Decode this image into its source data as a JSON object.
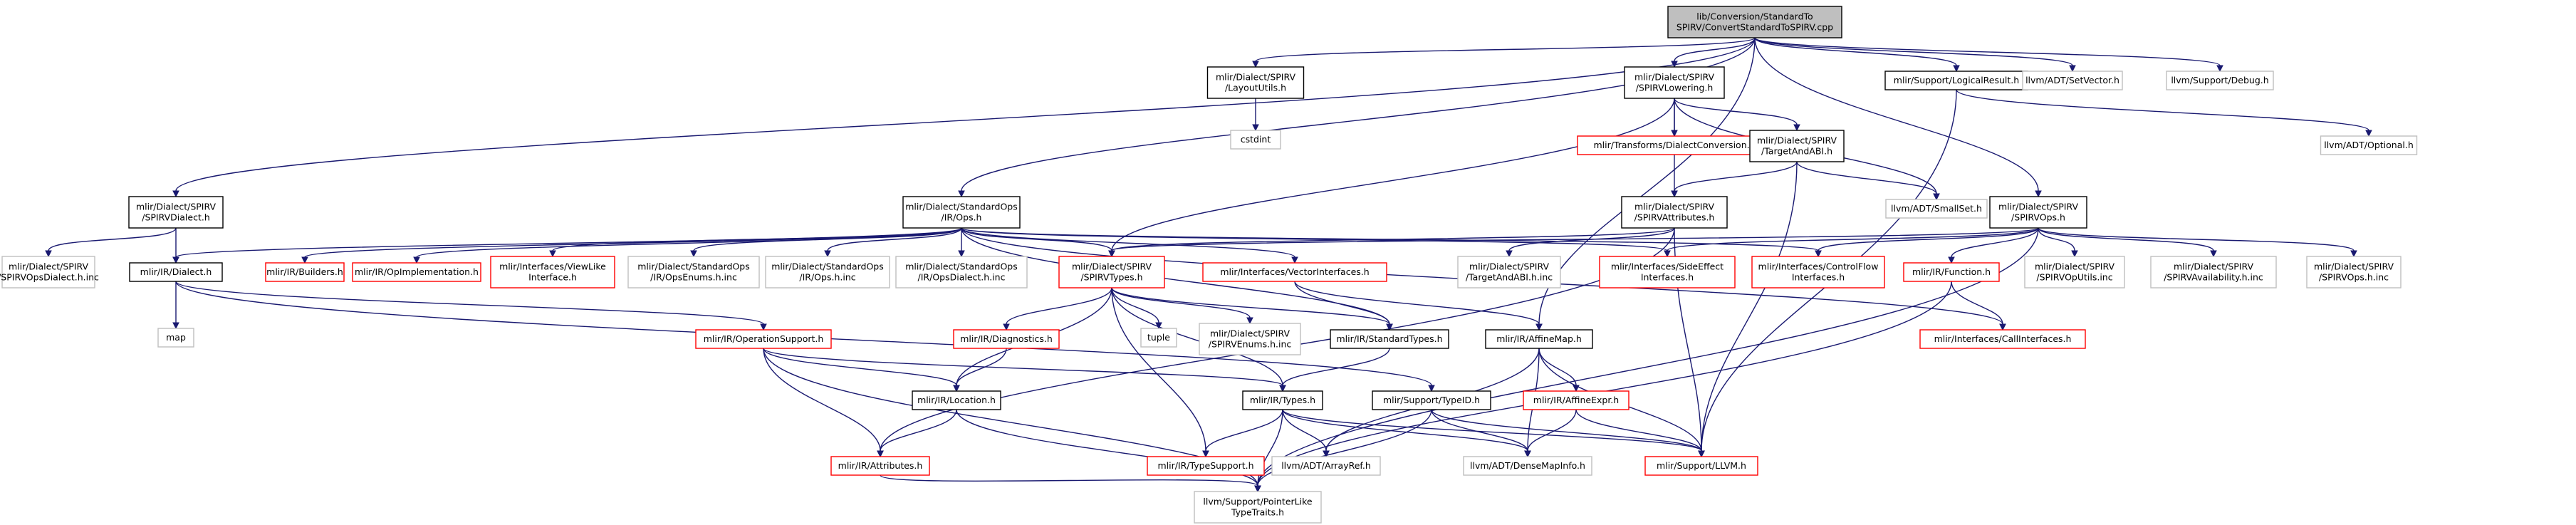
{
  "graph": {
    "title": "lib/Conversion/StandardToSPIRV/ConvertStandardToSPIRV.cpp",
    "colors": {
      "root_fill": "#bfbfbf",
      "root_border": "#000000",
      "documented_border": "#000000",
      "missing_border": "#ff0000",
      "external_border": "#bfbfbf",
      "external_text": "#7f7f7f",
      "edge": "#191970"
    },
    "nodes": [
      {
        "id": "root",
        "label": "lib/Conversion/StandardTo\nSPIRV/ConvertStandardToSPIRV.cpp",
        "kind": "root"
      },
      {
        "id": "layout",
        "label": "mlir/Dialect/SPIRV\n/LayoutUtils.h",
        "kind": "doc"
      },
      {
        "id": "lowering",
        "label": "mlir/Dialect/SPIRV\n/SPIRVLowering.h",
        "kind": "doc"
      },
      {
        "id": "logicalres",
        "label": "mlir/Support/LogicalResult.h",
        "kind": "doc"
      },
      {
        "id": "setvector",
        "label": "llvm/ADT/SetVector.h",
        "kind": "ext"
      },
      {
        "id": "debug",
        "label": "llvm/Support/Debug.h",
        "kind": "ext"
      },
      {
        "id": "optional",
        "label": "llvm/ADT/Optional.h",
        "kind": "ext"
      },
      {
        "id": "cstdint",
        "label": "cstdint",
        "kind": "ext"
      },
      {
        "id": "dialectconv",
        "label": "mlir/Transforms/DialectConversion.h",
        "kind": "missing"
      },
      {
        "id": "targetabi",
        "label": "mlir/Dialect/SPIRV\n/TargetAndABI.h",
        "kind": "doc"
      },
      {
        "id": "spirvdialect",
        "label": "mlir/Dialect/SPIRV\n/SPIRVDialect.h",
        "kind": "doc"
      },
      {
        "id": "stdops",
        "label": "mlir/Dialect/StandardOps\n/IR/Ops.h",
        "kind": "doc"
      },
      {
        "id": "spirvattrs",
        "label": "mlir/Dialect/SPIRV\n/SPIRVAttributes.h",
        "kind": "doc"
      },
      {
        "id": "smallset",
        "label": "llvm/ADT/SmallSet.h",
        "kind": "ext"
      },
      {
        "id": "spirvops",
        "label": "mlir/Dialect/SPIRV\n/SPIRVOps.h",
        "kind": "doc"
      },
      {
        "id": "opsdialectinc",
        "label": "mlir/Dialect/SPIRV\n/SPIRVOpsDialect.h.inc",
        "kind": "ext"
      },
      {
        "id": "irdialect",
        "label": "mlir/IR/Dialect.h",
        "kind": "doc"
      },
      {
        "id": "builders",
        "label": "mlir/IR/Builders.h",
        "kind": "missing"
      },
      {
        "id": "opimpl",
        "label": "mlir/IR/OpImplementation.h",
        "kind": "missing"
      },
      {
        "id": "viewlike",
        "label": "mlir/Interfaces/ViewLike\nInterface.h",
        "kind": "missing"
      },
      {
        "id": "opsenums",
        "label": "mlir/Dialect/StandardOps\n/IR/OpsEnums.h.inc",
        "kind": "ext"
      },
      {
        "id": "opshinc",
        "label": "mlir/Dialect/StandardOps\n/IR/Ops.h.inc",
        "kind": "ext"
      },
      {
        "id": "opsdialect2",
        "label": "mlir/Dialect/StandardOps\n/IR/OpsDialect.h.inc",
        "kind": "ext"
      },
      {
        "id": "spirvtypes",
        "label": "mlir/Dialect/SPIRV\n/SPIRVTypes.h",
        "kind": "missing"
      },
      {
        "id": "vectoriface",
        "label": "mlir/Interfaces/VectorInterfaces.h",
        "kind": "missing"
      },
      {
        "id": "targetabiinc",
        "label": "mlir/Dialect/SPIRV\n/TargetAndABI.h.inc",
        "kind": "ext"
      },
      {
        "id": "sideeffect",
        "label": "mlir/Interfaces/SideEffect\nInterfaces.h",
        "kind": "missing"
      },
      {
        "id": "controlflow",
        "label": "mlir/Interfaces/ControlFlow\nInterfaces.h",
        "kind": "missing"
      },
      {
        "id": "function",
        "label": "mlir/IR/Function.h",
        "kind": "missing"
      },
      {
        "id": "oputils",
        "label": "mlir/Dialect/SPIRV\n/SPIRVOpUtils.inc",
        "kind": "ext"
      },
      {
        "id": "availability",
        "label": "mlir/Dialect/SPIRV\n/SPIRVAvailability.h.inc",
        "kind": "ext"
      },
      {
        "id": "spirvopsinc",
        "label": "mlir/Dialect/SPIRV\n/SPIRVOps.h.inc",
        "kind": "ext"
      },
      {
        "id": "map",
        "label": "map",
        "kind": "ext"
      },
      {
        "id": "opsupport",
        "label": "mlir/IR/OperationSupport.h",
        "kind": "missing"
      },
      {
        "id": "diagnostics",
        "label": "mlir/IR/Diagnostics.h",
        "kind": "missing"
      },
      {
        "id": "tuple",
        "label": "tuple",
        "kind": "ext"
      },
      {
        "id": "enumsinc",
        "label": "mlir/Dialect/SPIRV\n/SPIRVEnums.h.inc",
        "kind": "ext"
      },
      {
        "id": "stdtypes",
        "label": "mlir/IR/StandardTypes.h",
        "kind": "doc"
      },
      {
        "id": "affinemap",
        "label": "mlir/IR/AffineMap.h",
        "kind": "doc"
      },
      {
        "id": "calliface",
        "label": "mlir/Interfaces/CallInterfaces.h",
        "kind": "missing"
      },
      {
        "id": "location",
        "label": "mlir/IR/Location.h",
        "kind": "doc"
      },
      {
        "id": "types",
        "label": "mlir/IR/Types.h",
        "kind": "doc"
      },
      {
        "id": "typeid",
        "label": "mlir/Support/TypeID.h",
        "kind": "doc"
      },
      {
        "id": "affineexpr",
        "label": "mlir/IR/AffineExpr.h",
        "kind": "missing"
      },
      {
        "id": "attributes",
        "label": "mlir/IR/Attributes.h",
        "kind": "missing"
      },
      {
        "id": "typesupport",
        "label": "mlir/IR/TypeSupport.h",
        "kind": "missing"
      },
      {
        "id": "arrayref",
        "label": "llvm/ADT/ArrayRef.h",
        "kind": "ext"
      },
      {
        "id": "densemapinfo",
        "label": "llvm/ADT/DenseMapInfo.h",
        "kind": "ext"
      },
      {
        "id": "llvmh",
        "label": "mlir/Support/LLVM.h",
        "kind": "missing"
      },
      {
        "id": "pointerlike",
        "label": "llvm/Support/PointerLike\nTypeTraits.h",
        "kind": "ext"
      }
    ]
  }
}
